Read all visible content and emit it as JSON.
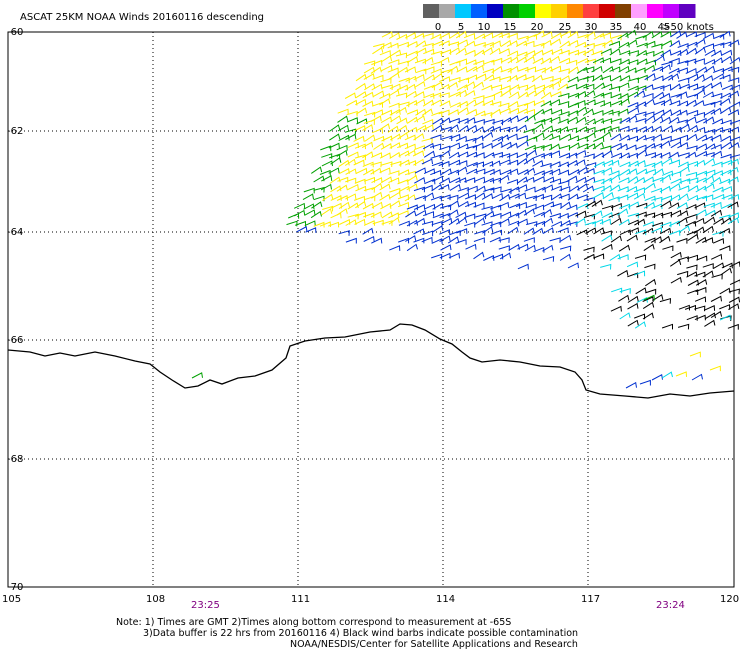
{
  "title": "ASCAT 25KM NOAA Winds 20160116 descending",
  "legend": {
    "colors": [
      "#606060",
      "#a8a8a8",
      "#00c8ff",
      "#0060ff",
      "#0000c0",
      "#009000",
      "#00d000",
      "#ffff00",
      "#ffd000",
      "#ff8800",
      "#ff4040",
      "#d00000",
      "#804000",
      "#ffa0ff",
      "#ff00ff",
      "#c000ff",
      "#6000c0"
    ],
    "labels": [
      "0",
      "5",
      "10",
      "15",
      "20",
      "25",
      "30",
      "35",
      "40",
      "45",
      ">50 knots"
    ]
  },
  "axes": {
    "lat_labels": [
      "-60",
      "-62",
      "-64",
      "-66",
      "-68",
      "-70"
    ],
    "lon_labels": [
      "105",
      "108",
      "111",
      "114",
      "117",
      "120"
    ]
  },
  "times": [
    "23:25",
    "23:24"
  ],
  "notes": [
    "Note: 1) Times are GMT 2)Times along bottom correspond to measurement at -65S",
    "3)Data buffer is 22 hrs from 20160116 4) Black wind barbs indicate possible contamination",
    "NOAA/NESDIS/Center for Satellite Applications and Research"
  ],
  "colors": {
    "green": "#00a000",
    "yellow": "#ffee00",
    "blue": "#0030d0",
    "cyan": "#00d8e8",
    "black": "#000000",
    "time_label": "#800080"
  }
}
